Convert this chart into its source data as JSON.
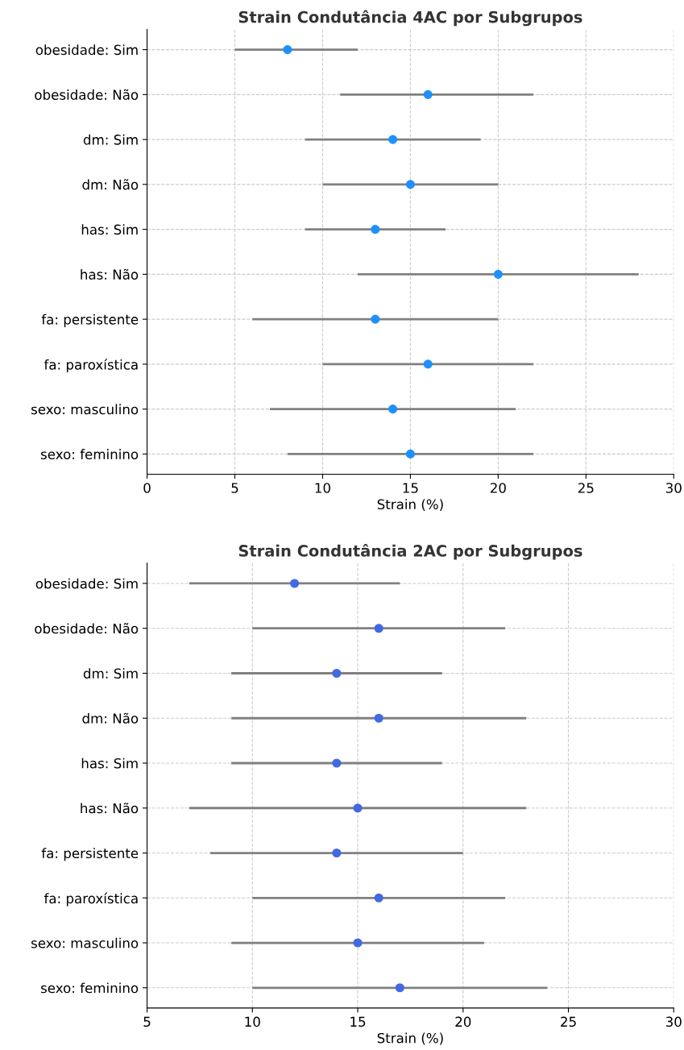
{
  "chart_data": [
    {
      "type": "scatter",
      "title": "Strain Condutância 4AC por Subgrupos",
      "xlabel": "Strain (%)",
      "orientation": "horizontal",
      "categories": [
        "obesidade: Sim",
        "obesidade: Não",
        "dm: Sim",
        "dm: Não",
        "has: Sim",
        "has: Não",
        "fa: persistente",
        "fa: paroxística",
        "sexo: masculino",
        "sexo: feminino"
      ],
      "series": [
        {
          "color": "#1e90ff",
          "values": [
            8,
            16,
            14,
            15,
            13,
            20,
            13,
            16,
            14,
            15
          ],
          "errors": [
            [
              5,
              12
            ],
            [
              11,
              22
            ],
            [
              9,
              19
            ],
            [
              10,
              20
            ],
            [
              9,
              17
            ],
            [
              12,
              28
            ],
            [
              6,
              20
            ],
            [
              10,
              22
            ],
            [
              7,
              21
            ],
            [
              8,
              22
            ]
          ]
        }
      ],
      "xlim": [
        0,
        30
      ],
      "xticks": [
        0,
        5,
        10,
        15,
        20,
        25,
        30
      ],
      "grid": true,
      "marker": "circle"
    },
    {
      "type": "scatter",
      "title": "Strain Condutância 2AC por Subgrupos",
      "xlabel": "Strain (%)",
      "orientation": "horizontal",
      "categories": [
        "obesidade: Sim",
        "obesidade: Não",
        "dm: Sim",
        "dm: Não",
        "has: Sim",
        "has: Não",
        "fa: persistente",
        "fa: paroxística",
        "sexo: masculino",
        "sexo: feminino"
      ],
      "series": [
        {
          "color": "#4169e1",
          "values": [
            12,
            16,
            14,
            16,
            14,
            15,
            14,
            16,
            15,
            17
          ],
          "errors": [
            [
              7,
              17
            ],
            [
              10,
              22
            ],
            [
              9,
              19
            ],
            [
              9,
              23
            ],
            [
              9,
              19
            ],
            [
              7,
              23
            ],
            [
              8,
              20
            ],
            [
              10,
              22
            ],
            [
              9,
              21
            ],
            [
              10,
              24
            ]
          ]
        }
      ],
      "xlim": [
        5,
        30
      ],
      "xticks": [
        5,
        10,
        15,
        20,
        25,
        30
      ],
      "grid": true,
      "marker": "circle"
    }
  ]
}
